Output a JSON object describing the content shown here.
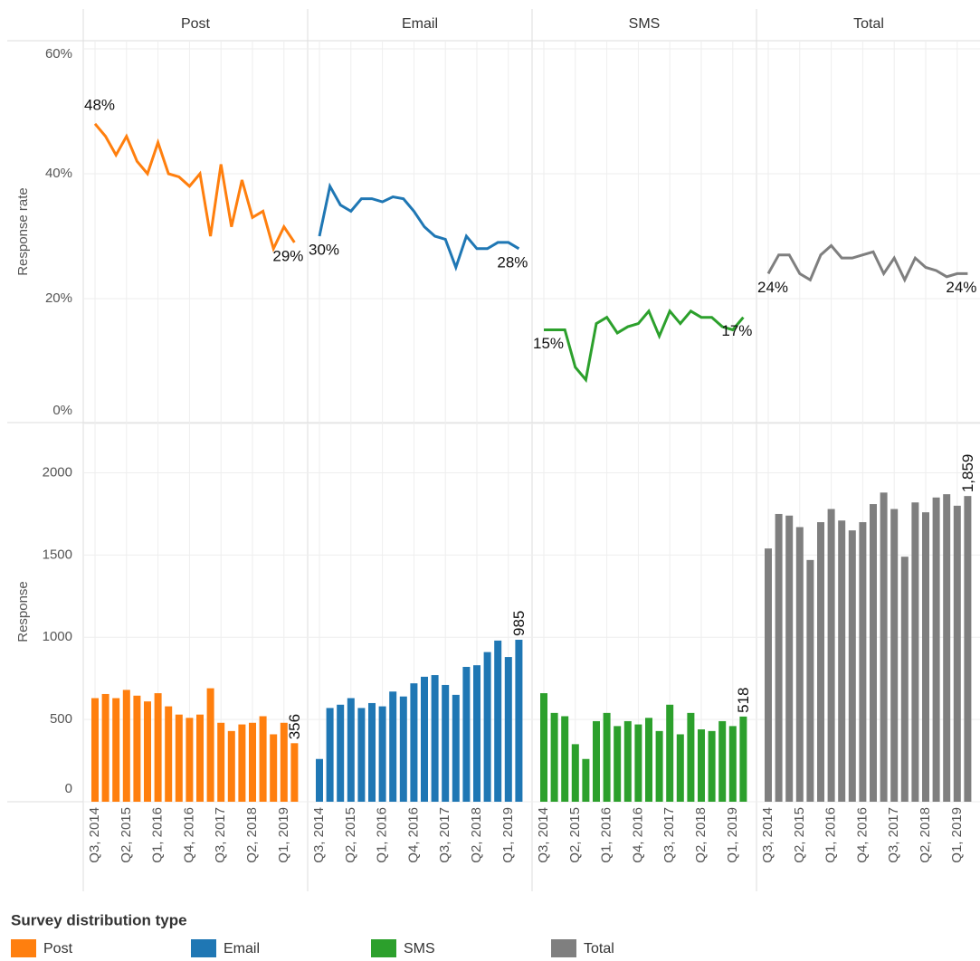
{
  "chart_data": [
    {
      "type": "line",
      "y_label": "Response rate",
      "legend_title": "Survey distribution type",
      "grid": true,
      "ylim": [
        0,
        60
      ],
      "yticks": [
        {
          "value": 0,
          "label": "0%"
        },
        {
          "value": 20,
          "label": "20%"
        },
        {
          "value": 40,
          "label": "40%"
        },
        {
          "value": 60,
          "label": "60%"
        }
      ],
      "series": [
        {
          "name": "Post",
          "color": "#ff7f0e",
          "values": [
            48,
            46,
            43,
            46,
            42,
            40,
            45,
            40,
            39.5,
            38,
            40,
            30,
            41.5,
            31.5,
            39,
            33,
            34,
            28,
            31.5,
            29
          ],
          "value_labels": [
            "48%",
            null,
            null,
            null,
            null,
            null,
            null,
            null,
            null,
            null,
            null,
            null,
            null,
            null,
            null,
            null,
            null,
            null,
            null,
            "29%"
          ]
        },
        {
          "name": "Email",
          "color": "#1f77b4",
          "values": [
            30,
            38,
            35,
            34,
            36,
            36,
            35.5,
            36.3,
            36,
            34,
            31.5,
            30,
            29.5,
            25,
            30,
            28,
            28,
            29,
            29,
            28
          ],
          "value_labels": [
            "30%",
            null,
            null,
            null,
            null,
            null,
            null,
            null,
            null,
            null,
            null,
            null,
            null,
            null,
            null,
            null,
            null,
            null,
            null,
            "28%"
          ]
        },
        {
          "name": "SMS",
          "color": "#2ca02c",
          "values": [
            15,
            15,
            15,
            9,
            7,
            16,
            17,
            14.5,
            15.5,
            16,
            18,
            14,
            18,
            16,
            18,
            17,
            17,
            15.5,
            15,
            17
          ],
          "value_labels": [
            "15%",
            null,
            null,
            null,
            null,
            null,
            null,
            null,
            null,
            null,
            null,
            null,
            null,
            null,
            null,
            null,
            null,
            null,
            null,
            "17%"
          ]
        },
        {
          "name": "Total",
          "color": "#7f7f7f",
          "values": [
            24,
            27,
            27,
            24,
            23,
            27,
            28.5,
            26.5,
            26.5,
            27,
            27.5,
            24,
            26.5,
            23,
            26.5,
            25,
            24.5,
            23.5,
            24,
            24
          ],
          "value_labels": [
            "24%",
            null,
            null,
            null,
            null,
            null,
            null,
            null,
            null,
            null,
            null,
            null,
            null,
            null,
            null,
            null,
            null,
            null,
            null,
            "24%"
          ]
        }
      ]
    },
    {
      "type": "bar",
      "y_label": "Response",
      "grid": true,
      "ylim": [
        0,
        2300
      ],
      "yticks": [
        0,
        500,
        1000,
        1500,
        2000
      ],
      "categories": [
        "Q3, 2014",
        null,
        null,
        "Q2, 2015",
        null,
        null,
        "Q1, 2016",
        null,
        null,
        "Q4, 2016",
        null,
        null,
        "Q3, 2017",
        null,
        null,
        "Q2, 2018",
        null,
        null,
        "Q1, 2019",
        null
      ],
      "series": [
        {
          "values": [
            630,
            655,
            630,
            680,
            645,
            610,
            660,
            580,
            530,
            510,
            530,
            690,
            480,
            430,
            470,
            480,
            520,
            410,
            480,
            356
          ],
          "value_labels": [
            null,
            null,
            null,
            null,
            null,
            null,
            null,
            null,
            null,
            null,
            null,
            null,
            null,
            null,
            null,
            null,
            null,
            null,
            null,
            "356"
          ]
        },
        {
          "values": [
            260,
            570,
            590,
            630,
            570,
            600,
            580,
            670,
            640,
            720,
            760,
            770,
            710,
            650,
            820,
            830,
            910,
            980,
            880,
            985
          ],
          "value_labels": [
            null,
            null,
            null,
            null,
            null,
            null,
            null,
            null,
            null,
            null,
            null,
            null,
            null,
            null,
            null,
            null,
            null,
            null,
            null,
            "985"
          ]
        },
        {
          "values": [
            660,
            540,
            520,
            350,
            260,
            490,
            540,
            460,
            490,
            470,
            510,
            430,
            590,
            410,
            540,
            440,
            430,
            490,
            460,
            518
          ],
          "value_labels": [
            null,
            null,
            null,
            null,
            null,
            null,
            null,
            null,
            null,
            null,
            null,
            null,
            null,
            null,
            null,
            null,
            null,
            null,
            null,
            "518"
          ]
        },
        {
          "values": [
            1540,
            1750,
            1740,
            1670,
            1470,
            1700,
            1780,
            1710,
            1650,
            1700,
            1810,
            1880,
            1780,
            1490,
            1820,
            1760,
            1850,
            1870,
            1800,
            1859
          ],
          "value_labels": [
            null,
            null,
            null,
            null,
            null,
            null,
            null,
            null,
            null,
            null,
            null,
            null,
            null,
            null,
            null,
            null,
            null,
            null,
            null,
            "1,859"
          ]
        }
      ]
    }
  ]
}
